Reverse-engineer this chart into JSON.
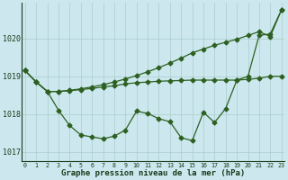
{
  "bg_color": "#cce8ee",
  "grid_color": "#aacccc",
  "line_color": "#2d6020",
  "marker_color": "#2d6020",
  "x": [
    0,
    1,
    2,
    3,
    4,
    5,
    6,
    7,
    8,
    9,
    10,
    11,
    12,
    13,
    14,
    15,
    16,
    17,
    18,
    19,
    20,
    21,
    22,
    23
  ],
  "series1": [
    1019.15,
    1018.85,
    1018.6,
    1018.6,
    1018.63,
    1018.67,
    1018.72,
    1018.78,
    1018.85,
    1018.93,
    1019.02,
    1019.12,
    1019.23,
    1019.35,
    1019.48,
    1019.62,
    1019.72,
    1019.82,
    1019.9,
    1019.98,
    1020.08,
    1020.18,
    1020.05,
    1020.75
  ],
  "series2": [
    1019.15,
    1018.85,
    1018.6,
    1018.6,
    1018.62,
    1018.65,
    1018.68,
    1018.72,
    1018.75,
    1018.8,
    1018.83,
    1018.85,
    1018.87,
    1018.88,
    1018.89,
    1018.9,
    1018.9,
    1018.9,
    1018.9,
    1018.9,
    1018.92,
    1018.95,
    1019.0,
    1019.0
  ],
  "series3": [
    1019.15,
    1018.85,
    1018.6,
    1018.1,
    1017.7,
    1017.45,
    1017.4,
    1017.35,
    1017.42,
    1017.58,
    1018.08,
    1018.02,
    1017.88,
    1017.8,
    1017.38,
    1017.3,
    1018.05,
    1017.78,
    1018.15,
    1018.9,
    1019.0,
    1020.08,
    1020.12,
    1020.75
  ],
  "xlabel": "Graphe pression niveau de la mer (hPa)",
  "xlim": [
    -0.3,
    23.3
  ],
  "ylim": [
    1016.75,
    1020.95
  ],
  "yticks": [
    1017,
    1018,
    1019,
    1020
  ],
  "xticks": [
    0,
    1,
    2,
    3,
    4,
    5,
    6,
    7,
    8,
    9,
    10,
    11,
    12,
    13,
    14,
    15,
    16,
    17,
    18,
    19,
    20,
    21,
    22,
    23
  ]
}
